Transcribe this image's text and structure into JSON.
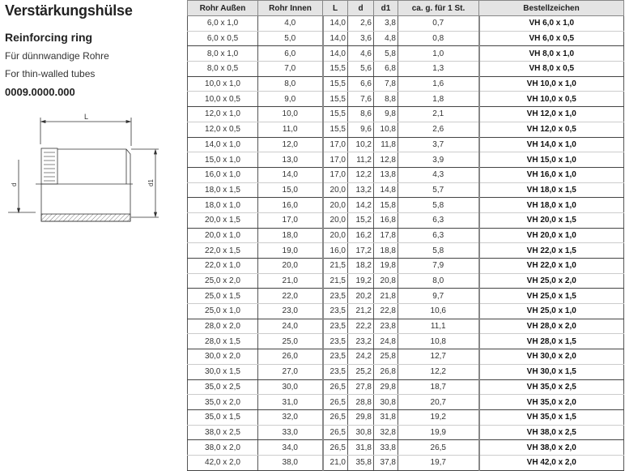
{
  "product": {
    "title_de": "Verstärkungshülse",
    "title_en": "Reinforcing ring",
    "desc_de": "Für dünnwandige Rohre",
    "desc_en": "For thin-walled tubes",
    "article_no": "0009.0000.000",
    "drawing_labels": {
      "length": "L",
      "inner": "d",
      "outer": "d1"
    }
  },
  "table": {
    "headers": [
      "Rohr Außen",
      "Rohr Innen",
      "L",
      "d",
      "d1",
      "ca. g. für 1 St.",
      "Bestellzeichen"
    ],
    "rows": [
      [
        "6,0 x 1,0",
        "4,0",
        "14,0",
        "2,6",
        "3,8",
        "0,7",
        "VH 6,0 x 1,0"
      ],
      [
        "6,0 x 0,5",
        "5,0",
        "14,0",
        "3,6",
        "4,8",
        "0,8",
        "VH 6,0 x 0,5"
      ],
      [
        "8,0 x 1,0",
        "6,0",
        "14,0",
        "4,6",
        "5,8",
        "1,0",
        "VH 8,0 x 1,0"
      ],
      [
        "8,0 x 0,5",
        "7,0",
        "15,5",
        "5,6",
        "6,8",
        "1,3",
        "VH 8,0 x 0,5"
      ],
      [
        "10,0 x 1,0",
        "8,0",
        "15,5",
        "6,6",
        "7,8",
        "1,6",
        "VH 10,0 x 1,0"
      ],
      [
        "10,0 x 0,5",
        "9,0",
        "15,5",
        "7,6",
        "8,8",
        "1,8",
        "VH 10,0 x 0,5"
      ],
      [
        "12,0 x 1,0",
        "10,0",
        "15,5",
        "8,6",
        "9,8",
        "2,1",
        "VH 12,0 x 1,0"
      ],
      [
        "12,0 x 0,5",
        "11,0",
        "15,5",
        "9,6",
        "10,8",
        "2,6",
        "VH 12,0 x 0,5"
      ],
      [
        "14,0 x 1,0",
        "12,0",
        "17,0",
        "10,2",
        "11,8",
        "3,7",
        "VH 14,0 x 1,0"
      ],
      [
        "15,0 x 1,0",
        "13,0",
        "17,0",
        "11,2",
        "12,8",
        "3,9",
        "VH 15,0 x 1,0"
      ],
      [
        "16,0 x 1,0",
        "14,0",
        "17,0",
        "12,2",
        "13,8",
        "4,3",
        "VH 16,0 x 1,0"
      ],
      [
        "18,0 x 1,5",
        "15,0",
        "20,0",
        "13,2",
        "14,8",
        "5,7",
        "VH 18,0 x 1,5"
      ],
      [
        "18,0 x 1,0",
        "16,0",
        "20,0",
        "14,2",
        "15,8",
        "5,8",
        "VH 18,0 x 1,0"
      ],
      [
        "20,0 x 1,5",
        "17,0",
        "20,0",
        "15,2",
        "16,8",
        "6,3",
        "VH 20,0 x 1,5"
      ],
      [
        "20,0 x 1,0",
        "18,0",
        "20,0",
        "16,2",
        "17,8",
        "6,3",
        "VH 20,0 x 1,0"
      ],
      [
        "22,0 x 1,5",
        "19,0",
        "16,0",
        "17,2",
        "18,8",
        "5,8",
        "VH 22,0 x 1,5"
      ],
      [
        "22,0 x 1,0",
        "20,0",
        "21,5",
        "18,2",
        "19,8",
        "7,9",
        "VH 22,0 x 1,0"
      ],
      [
        "25,0 x 2,0",
        "21,0",
        "21,5",
        "19,2",
        "20,8",
        "8,0",
        "VH 25,0 x 2,0"
      ],
      [
        "25,0 x 1,5",
        "22,0",
        "23,5",
        "20,2",
        "21,8",
        "9,7",
        "VH 25,0 x 1,5"
      ],
      [
        "25,0 x 1,0",
        "23,0",
        "23,5",
        "21,2",
        "22,8",
        "10,6",
        "VH 25,0 x 1,0"
      ],
      [
        "28,0 x 2,0",
        "24,0",
        "23,5",
        "22,2",
        "23,8",
        "11,1",
        "VH 28,0 x 2,0"
      ],
      [
        "28,0 x 1,5",
        "25,0",
        "23,5",
        "23,2",
        "24,8",
        "10,8",
        "VH 28,0 x 1,5"
      ],
      [
        "30,0 x 2,0",
        "26,0",
        "23,5",
        "24,2",
        "25,8",
        "12,7",
        "VH 30,0 x 2,0"
      ],
      [
        "30,0 x 1,5",
        "27,0",
        "23,5",
        "25,2",
        "26,8",
        "12,2",
        "VH 30,0 x 1,5"
      ],
      [
        "35,0 x 2,5",
        "30,0",
        "26,5",
        "27,8",
        "29,8",
        "18,7",
        "VH 35,0 x 2,5"
      ],
      [
        "35,0 x 2,0",
        "31,0",
        "26,5",
        "28,8",
        "30,8",
        "20,7",
        "VH 35,0 x 2,0"
      ],
      [
        "35,0 x 1,5",
        "32,0",
        "26,5",
        "29,8",
        "31,8",
        "19,2",
        "VH 35,0 x 1,5"
      ],
      [
        "38,0 x 2,5",
        "33,0",
        "26,5",
        "30,8",
        "32,8",
        "19,9",
        "VH 38,0 x 2,5"
      ],
      [
        "38,0 x 2,0",
        "34,0",
        "26,5",
        "31,8",
        "33,8",
        "26,5",
        "VH 38,0 x 2,0"
      ],
      [
        "42,0 x 2,0",
        "38,0",
        "21,0",
        "35,8",
        "37,8",
        "19,7",
        "VH 42,0 x 2,0"
      ]
    ]
  }
}
